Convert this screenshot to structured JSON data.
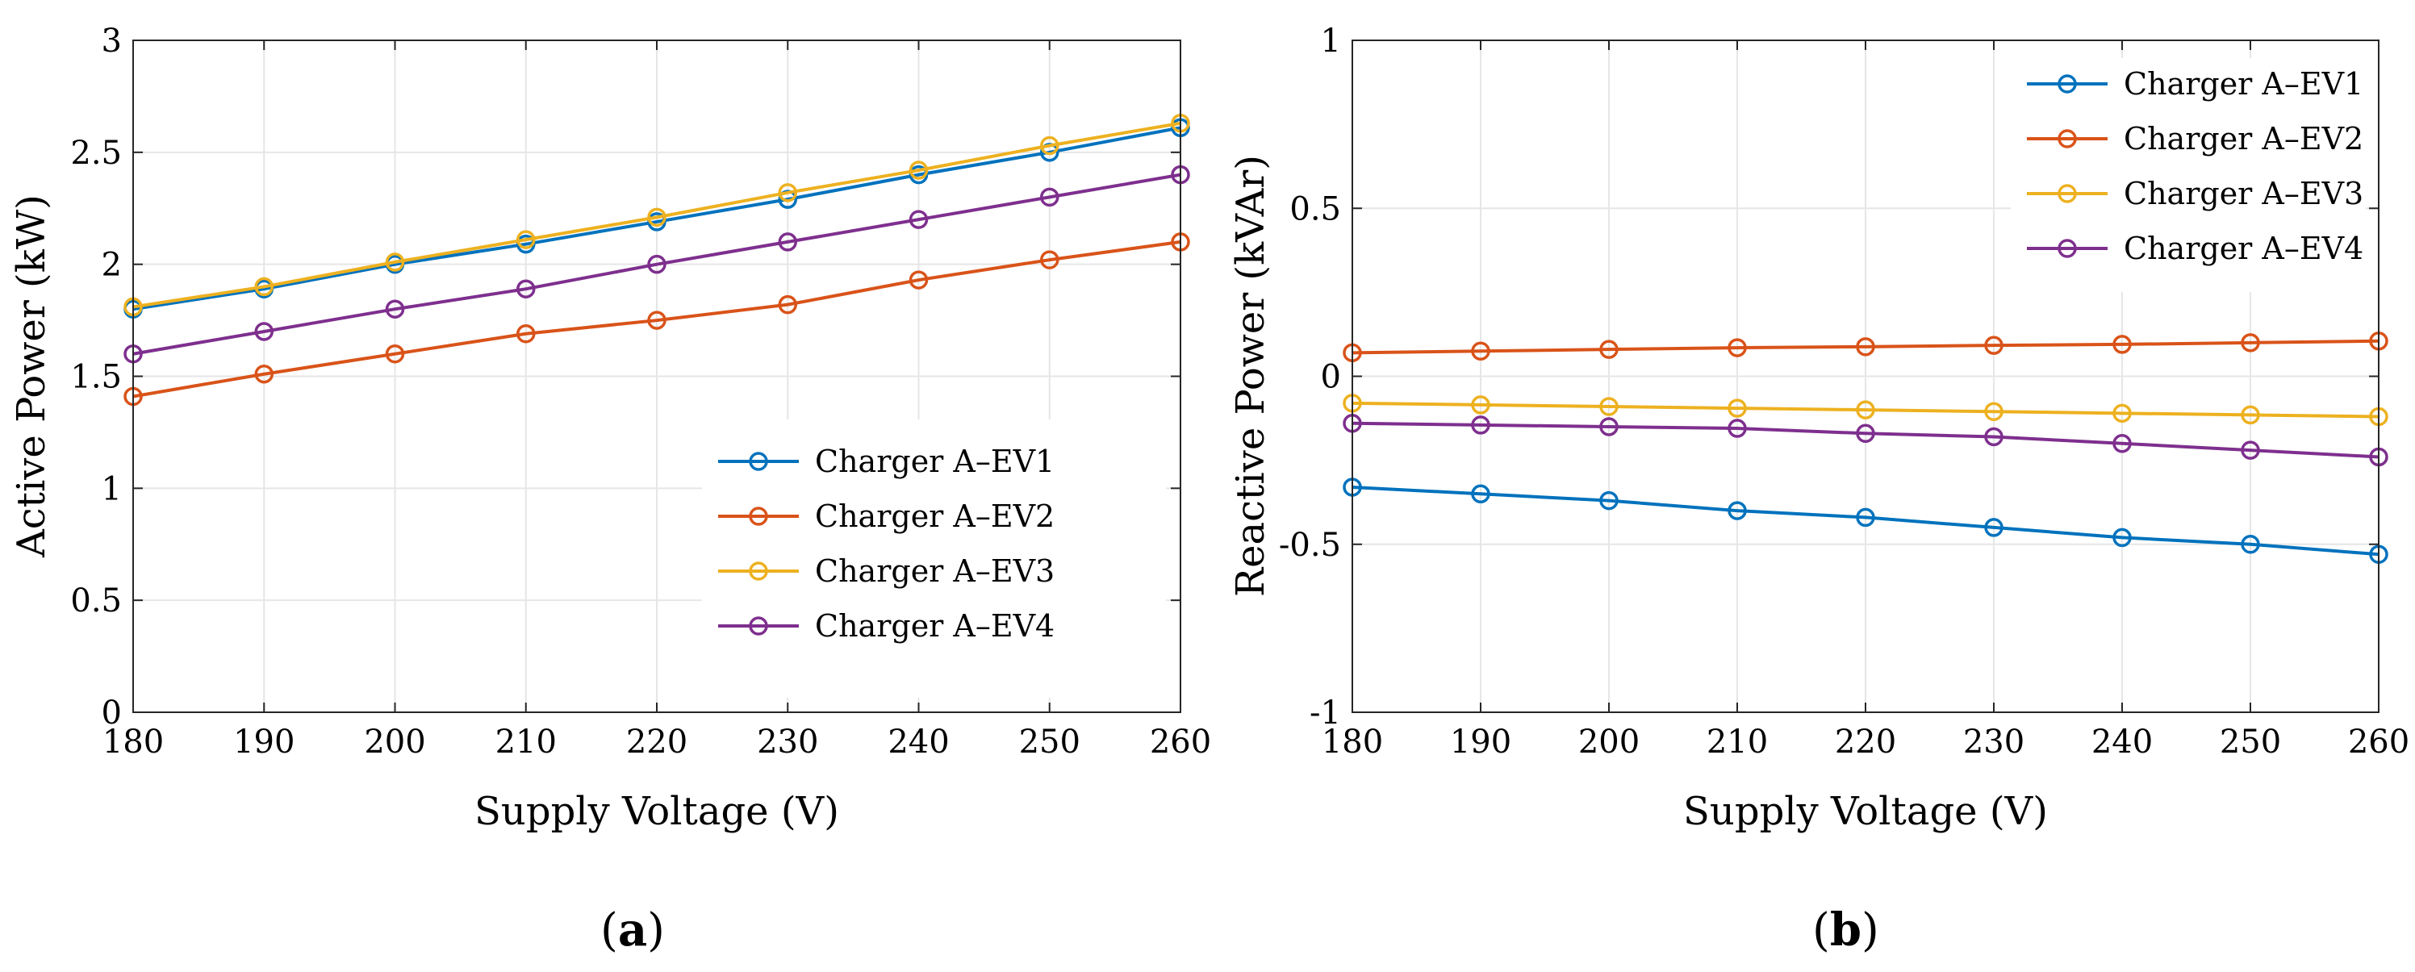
{
  "chart_data": [
    {
      "type": "line",
      "panel_label": "a",
      "title": "",
      "xlabel": "Supply Voltage (V)",
      "ylabel": "Active Power (kW)",
      "xlim": [
        180,
        260
      ],
      "ylim": [
        0,
        3
      ],
      "xticks": [
        180,
        190,
        200,
        210,
        220,
        230,
        240,
        250,
        260
      ],
      "yticks": [
        0,
        0.5,
        1,
        1.5,
        2,
        2.5,
        3
      ],
      "ytick_labels": [
        "0",
        "0.5",
        "1",
        "1.5",
        "2",
        "2.5",
        "3"
      ],
      "grid": true,
      "legend_position": "bottom-right",
      "x": [
        180,
        190,
        200,
        210,
        220,
        230,
        240,
        250,
        260
      ],
      "series": [
        {
          "name": "Charger A–EV1",
          "color": "#0072BD",
          "values": [
            1.8,
            1.89,
            2.0,
            2.09,
            2.19,
            2.29,
            2.4,
            2.5,
            2.61
          ]
        },
        {
          "name": "Charger A–EV2",
          "color": "#D95319",
          "values": [
            1.41,
            1.51,
            1.6,
            1.69,
            1.75,
            1.82,
            1.93,
            2.02,
            2.1
          ]
        },
        {
          "name": "Charger A–EV3",
          "color": "#EDB120",
          "values": [
            1.81,
            1.9,
            2.01,
            2.11,
            2.21,
            2.32,
            2.42,
            2.53,
            2.63
          ]
        },
        {
          "name": "Charger A–EV4",
          "color": "#7E2F8E",
          "values": [
            1.6,
            1.7,
            1.8,
            1.89,
            2.0,
            2.1,
            2.2,
            2.3,
            2.4
          ]
        }
      ]
    },
    {
      "type": "line",
      "panel_label": "b",
      "title": "",
      "xlabel": "Supply Voltage (V)",
      "ylabel": "Reactive Power (kVAr)",
      "xlim": [
        180,
        260
      ],
      "ylim": [
        -1,
        1
      ],
      "xticks": [
        180,
        190,
        200,
        210,
        220,
        230,
        240,
        250,
        260
      ],
      "yticks": [
        -1,
        -0.5,
        0,
        0.5,
        1
      ],
      "ytick_labels": [
        "-1",
        "-0.5",
        "0",
        "0.5",
        "1"
      ],
      "grid": true,
      "legend_position": "top-right",
      "x": [
        180,
        190,
        200,
        210,
        220,
        230,
        240,
        250,
        260
      ],
      "series": [
        {
          "name": "Charger A–EV1",
          "color": "#0072BD",
          "values": [
            -0.33,
            -0.35,
            -0.37,
            -0.4,
            -0.42,
            -0.45,
            -0.48,
            -0.5,
            -0.53
          ]
        },
        {
          "name": "Charger A–EV2",
          "color": "#D95319",
          "values": [
            0.07,
            0.075,
            0.08,
            0.085,
            0.088,
            0.092,
            0.095,
            0.1,
            0.105
          ]
        },
        {
          "name": "Charger A–EV3",
          "color": "#EDB120",
          "values": [
            -0.08,
            -0.085,
            -0.09,
            -0.095,
            -0.1,
            -0.105,
            -0.11,
            -0.115,
            -0.12
          ]
        },
        {
          "name": "Charger A–EV4",
          "color": "#7E2F8E",
          "values": [
            -0.14,
            -0.145,
            -0.15,
            -0.155,
            -0.17,
            -0.18,
            -0.2,
            -0.22,
            -0.24
          ]
        }
      ]
    }
  ]
}
